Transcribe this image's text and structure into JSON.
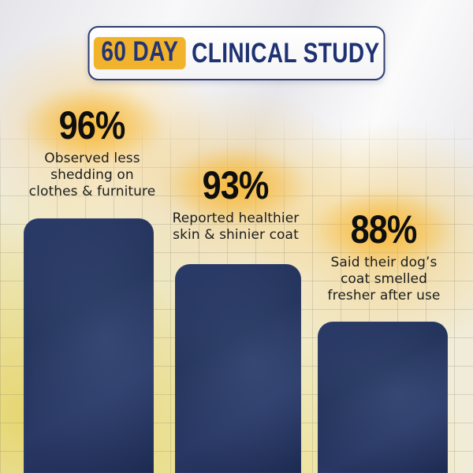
{
  "title": {
    "highlight": "60 DAY",
    "rest": "CLINICAL STUDY"
  },
  "stats": [
    {
      "value": "96%",
      "lines": [
        "Observed less",
        "shedding on",
        "clothes & furniture"
      ]
    },
    {
      "value": "93%",
      "lines": [
        "Reported healthier",
        "skin & shinier coat"
      ]
    },
    {
      "value": "88%",
      "lines": [
        "Said their dog’s",
        "coat smelled",
        "fresher after use"
      ]
    }
  ],
  "chart_data": {
    "type": "bar",
    "title": "60 DAY CLINICAL STUDY",
    "categories": [
      "Observed less shedding on clothes & furniture",
      "Reported healthier skin & shinier coat",
      "Said their dog’s coat smelled fresher after use"
    ],
    "values": [
      96,
      93,
      88
    ],
    "unit": "%",
    "ylim": [
      0,
      100
    ],
    "grid": true,
    "legend": "none",
    "bar_color": "#243463"
  },
  "colors": {
    "accent_yellow": "#F2B32C",
    "glow_yellow": "#F7B734",
    "navy_text": "#1E3272",
    "bar_navy": "#243463",
    "stat_text": "#0E0E0E",
    "desc_text": "#1C1C1C",
    "bg_cream": "#F1ECD8"
  }
}
